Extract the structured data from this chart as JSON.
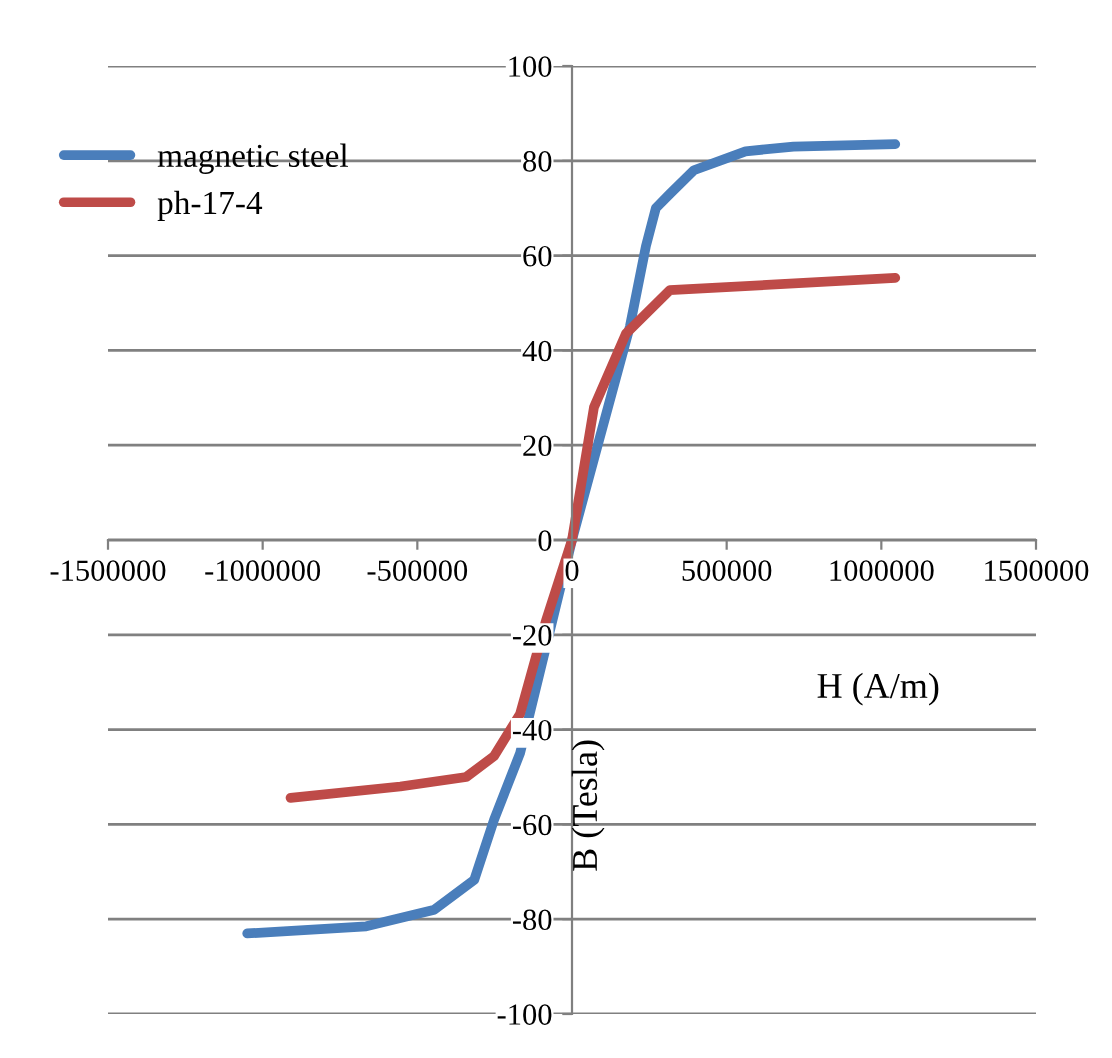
{
  "chart_data": {
    "type": "line",
    "xlabel": "H (A/m)",
    "ylabel": "B (Tesla)",
    "xlim": [
      -1500000,
      1500000
    ],
    "xticks": [
      -1500000,
      -1000000,
      -500000,
      0,
      500000,
      1000000,
      1500000
    ],
    "ylim": [
      -100,
      100
    ],
    "yticks": [
      -100,
      -80,
      -60,
      -40,
      -20,
      0,
      20,
      40,
      60,
      80,
      100
    ],
    "grid": "y",
    "legend": "top left",
    "marker": "none",
    "line_style": "solid",
    "series": [
      {
        "name": "magnetic steel",
        "color": "#4a7ebb",
        "x": [
          -1050000,
          -665000,
          -445000,
          -316000,
          -252000,
          -168000,
          0,
          187000,
          239000,
          271000,
          316000,
          394000,
          561000,
          716000,
          1045000
        ],
        "values": [
          -83,
          -81.5,
          -78,
          -71.7,
          -59,
          -45,
          0,
          45,
          62,
          70,
          73,
          78,
          82,
          83,
          83.5
        ]
      },
      {
        "name": "ph-17-4",
        "color": "#be4b48",
        "x": [
          -910000,
          -555000,
          -342000,
          -252000,
          -168000,
          -84000,
          0,
          71000,
          174000,
          316000,
          1045000
        ],
        "values": [
          -54.4,
          -52,
          -50,
          -45.6,
          -36.7,
          -17,
          0,
          28,
          43.5,
          52.7,
          55.3
        ]
      }
    ]
  }
}
